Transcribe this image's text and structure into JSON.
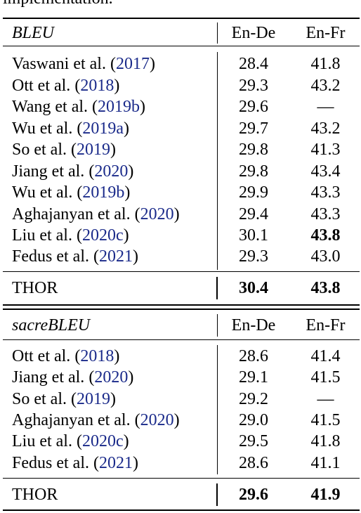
{
  "caption_tail": "implementation.",
  "tables": [
    {
      "metric": "BLEU",
      "columns": [
        "En-De",
        "En-Fr"
      ],
      "rows": [
        {
          "author": "Vaswani et al.",
          "year": "2017",
          "en_de": "28.4",
          "en_fr": "41.8"
        },
        {
          "author": "Ott et al.",
          "year": "2018",
          "en_de": "29.3",
          "en_fr": "43.2"
        },
        {
          "author": "Wang et al.",
          "year": "2019b",
          "en_de": "29.6",
          "en_fr": "—"
        },
        {
          "author": "Wu et al.",
          "year": "2019a",
          "en_de": "29.7",
          "en_fr": "43.2"
        },
        {
          "author": "So et al.",
          "year": "2019",
          "en_de": "29.8",
          "en_fr": "41.3"
        },
        {
          "author": "Jiang et al.",
          "year": "2020",
          "en_de": "29.8",
          "en_fr": "43.4"
        },
        {
          "author": "Wu et al.",
          "year": "2019b",
          "en_de": "29.9",
          "en_fr": "43.3"
        },
        {
          "author": "Aghajanyan et al.",
          "year": "2020",
          "en_de": "29.4",
          "en_fr": "43.3"
        },
        {
          "author": "Liu et al.",
          "year": "2020c",
          "en_de": "30.1",
          "en_fr": "43.8",
          "bold_en_fr": true
        },
        {
          "author": "Fedus et al.",
          "year": "2021",
          "en_de": "29.3",
          "en_fr": "43.0"
        }
      ],
      "ours": {
        "label": "THOR",
        "en_de": "30.4",
        "en_fr": "43.8"
      }
    },
    {
      "metric": "sacreBLEU",
      "columns": [
        "En-De",
        "En-Fr"
      ],
      "rows": [
        {
          "author": "Ott et al.",
          "year": "2018",
          "en_de": "28.6",
          "en_fr": "41.4"
        },
        {
          "author": "Jiang et al.",
          "year": "2020",
          "en_de": "29.1",
          "en_fr": "41.5"
        },
        {
          "author": "So et al.",
          "year": "2019",
          "en_de": "29.2",
          "en_fr": "—"
        },
        {
          "author": "Aghajanyan et al.",
          "year": "2020",
          "en_de": "29.0",
          "en_fr": "41.5"
        },
        {
          "author": "Liu et al.",
          "year": "2020c",
          "en_de": "29.5",
          "en_fr": "41.8"
        },
        {
          "author": "Fedus et al.",
          "year": "2021",
          "en_de": "28.6",
          "en_fr": "41.1"
        }
      ],
      "ours": {
        "label": "THOR",
        "en_de": "29.6",
        "en_fr": "41.9"
      }
    }
  ]
}
